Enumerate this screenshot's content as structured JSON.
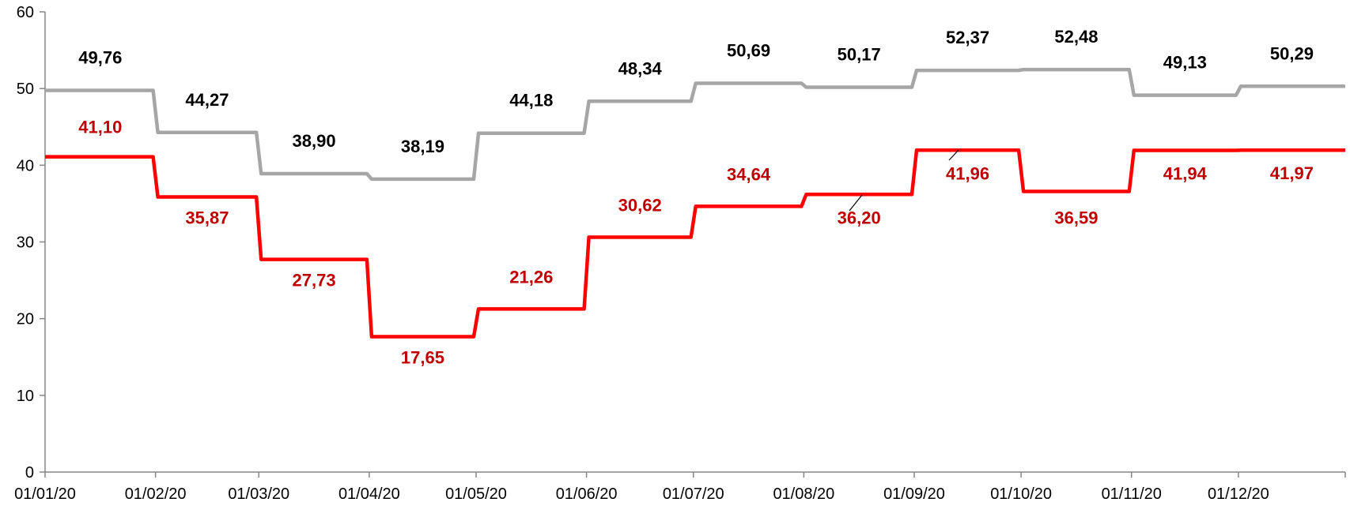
{
  "chart_data": {
    "type": "line",
    "step": true,
    "grid": false,
    "legend": "none",
    "x": [
      "01/01/20",
      "01/02/20",
      "01/03/20",
      "01/04/20",
      "01/05/20",
      "01/06/20",
      "01/07/20",
      "01/08/20",
      "01/09/20",
      "01/10/20",
      "01/11/20",
      "01/12/20"
    ],
    "x_end": "31/12/20",
    "xticks": [
      "01/01/20",
      "01/02/20",
      "01/03/20",
      "01/04/20",
      "01/05/20",
      "01/06/20",
      "01/07/20",
      "01/08/20",
      "01/09/20",
      "01/10/20",
      "01/11/20",
      "01/12/20"
    ],
    "ylim": [
      0,
      60
    ],
    "yticks": [
      0,
      10,
      20,
      30,
      40,
      50,
      60
    ],
    "series": [
      {
        "color": "#a6a6a6",
        "label_color": "#000000",
        "values": [
          49.76,
          44.27,
          38.9,
          38.19,
          44.18,
          48.34,
          50.69,
          50.17,
          52.37,
          52.48,
          49.13,
          50.29
        ],
        "labels": [
          "49,76",
          "44,27",
          "38,90",
          "38,19",
          "44,18",
          "48,34",
          "50,69",
          "50,17",
          "52,37",
          "52,48",
          "49,13",
          "50,29"
        ]
      },
      {
        "color": "#ff0000",
        "label_color": "#c00000",
        "values": [
          41.1,
          35.87,
          27.73,
          17.65,
          21.26,
          30.62,
          34.64,
          36.2,
          41.96,
          36.59,
          41.94,
          41.97
        ],
        "labels": [
          "41,10",
          "35,87",
          "27,73",
          "17,65",
          "21,26",
          "30,62",
          "34,64",
          "36,20",
          "41,96",
          "36,59",
          "41,94",
          "41,97"
        ]
      }
    ]
  }
}
